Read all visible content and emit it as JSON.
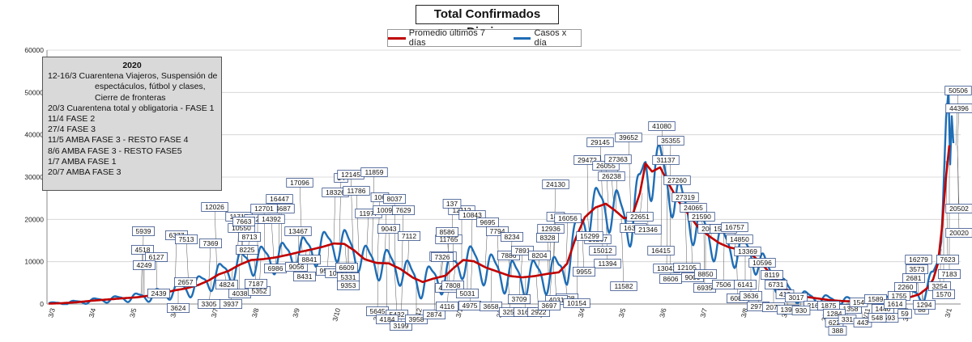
{
  "title": "Total  Confirmados  Diarios",
  "legend": {
    "avg_label": "Promedio últimos 7 días",
    "cases_label": "Casos x día",
    "avg_color": "#c00000",
    "cases_color": "#1f6db5"
  },
  "notes": {
    "title": "2020",
    "lines": [
      "12-16/3  Cuarentena Viajeros, Suspensión de",
      "espectáculos, fútbol y clases,",
      "Cierre de fronteras",
      "20/3  Cuarentena total y obligatoria - FASE 1",
      "11/4  FASE 2",
      "27/4  FASE 3",
      "11/5  AMBA FASE 3 - RESTO FASE 4",
      "8/6  AMBA FASE 3 - RESTO FASE5",
      "1/7  AMBA FASE 1",
      "20/7  AMBA FASE 3"
    ]
  },
  "chart_data": {
    "type": "line",
    "title": "Total  Confirmados  Diarios",
    "xlabel": "",
    "ylabel": "",
    "ylim": [
      0,
      60000
    ],
    "yticks": [
      "0",
      "10000",
      "20000",
      "30000",
      "40000",
      "50000",
      "60000"
    ],
    "xticks": [
      "3/3",
      "3/4",
      "3/5",
      "3/6",
      "3/7",
      "3/8",
      "3/9",
      "3/10",
      "3/11",
      "3/12",
      "3/1",
      "3/2",
      "3/3",
      "3/4",
      "3/5",
      "3/6",
      "3/7",
      "3/8",
      "3/9",
      "3/10",
      "3/11",
      "3/12",
      "3/1"
    ],
    "grid": true,
    "anchors": [
      [
        0,
        0
      ],
      [
        35,
        5
      ],
      [
        55,
        60
      ],
      [
        75,
        180
      ],
      [
        95,
        420
      ],
      [
        115,
        800
      ],
      [
        135,
        1100
      ],
      [
        155,
        1400
      ],
      [
        170,
        1600
      ],
      [
        185,
        2000
      ],
      [
        200,
        2500
      ],
      [
        215,
        3200
      ],
      [
        230,
        3700
      ],
      [
        245,
        4500
      ],
      [
        258,
        5600
      ],
      [
        270,
        7000
      ],
      [
        282,
        7800
      ],
      [
        295,
        9200
      ],
      [
        310,
        10400
      ],
      [
        325,
        10600
      ],
      [
        340,
        11000
      ],
      [
        355,
        11600
      ],
      [
        370,
        12300
      ],
      [
        385,
        12900
      ],
      [
        400,
        13600
      ],
      [
        412,
        14300
      ],
      [
        425,
        14200
      ],
      [
        437,
        12700
      ],
      [
        450,
        10600
      ],
      [
        465,
        9700
      ],
      [
        480,
        9600
      ],
      [
        495,
        8200
      ],
      [
        510,
        6200
      ],
      [
        522,
        5200
      ],
      [
        535,
        6000
      ],
      [
        550,
        6700
      ],
      [
        560,
        8500
      ],
      [
        572,
        10400
      ],
      [
        585,
        10100
      ],
      [
        600,
        8600
      ],
      [
        615,
        7600
      ],
      [
        630,
        6600
      ],
      [
        645,
        6300
      ],
      [
        660,
        6600
      ],
      [
        675,
        7100
      ],
      [
        690,
        7500
      ],
      [
        700,
        9500
      ],
      [
        710,
        15200
      ],
      [
        722,
        20500
      ],
      [
        735,
        22800
      ],
      [
        748,
        23700
      ],
      [
        760,
        22000
      ],
      [
        770,
        20300
      ],
      [
        780,
        20500
      ],
      [
        790,
        26200
      ],
      [
        797,
        33200
      ],
      [
        805,
        31300
      ],
      [
        815,
        32300
      ],
      [
        825,
        28600
      ],
      [
        838,
        24200
      ],
      [
        850,
        21200
      ],
      [
        862,
        18100
      ],
      [
        875,
        16100
      ],
      [
        888,
        14400
      ],
      [
        900,
        13400
      ],
      [
        912,
        12900
      ],
      [
        925,
        12200
      ],
      [
        940,
        9600
      ],
      [
        955,
        6300
      ],
      [
        968,
        3900
      ],
      [
        980,
        2300
      ],
      [
        995,
        1700
      ],
      [
        1010,
        1300
      ],
      [
        1025,
        900
      ],
      [
        1040,
        700
      ],
      [
        1055,
        600
      ],
      [
        1070,
        700
      ],
      [
        1085,
        850
      ],
      [
        1100,
        1000
      ],
      [
        1115,
        1300
      ],
      [
        1125,
        1700
      ],
      [
        1135,
        2300
      ],
      [
        1145,
        3800
      ],
      [
        1152,
        5800
      ],
      [
        1158,
        9600
      ],
      [
        1163,
        18200
      ],
      [
        1168,
        30200
      ],
      [
        1172,
        37500
      ]
    ],
    "weekly_amplitude": [
      [
        0,
        0
      ],
      [
        150,
        800
      ],
      [
        230,
        2200
      ],
      [
        300,
        3500
      ],
      [
        400,
        4200
      ],
      [
        500,
        3800
      ],
      [
        600,
        4300
      ],
      [
        700,
        4700
      ],
      [
        760,
        6200
      ],
      [
        800,
        7000
      ],
      [
        860,
        5500
      ],
      [
        930,
        3800
      ],
      [
        1000,
        1300
      ],
      [
        1100,
        1100
      ],
      [
        1150,
        3000
      ]
    ],
    "final_cases": [
      [
        1164,
        23000
      ],
      [
        1168,
        44000
      ],
      [
        1171,
        50506
      ],
      [
        1173,
        33000
      ],
      [
        1175,
        44396
      ],
      [
        1177,
        38000
      ]
    ],
    "labels": [
      [
        "5939",
        177,
        286
      ],
      [
        "6377",
        218,
        291
      ],
      [
        "7513",
        230,
        296
      ],
      [
        "4518",
        176,
        309
      ],
      [
        "6127",
        193,
        318
      ],
      [
        "4249",
        178,
        328
      ],
      [
        "2439",
        196,
        363
      ],
      [
        "2657",
        229,
        349
      ],
      [
        "3624",
        220,
        381
      ],
      [
        "3305",
        258,
        376
      ],
      [
        "3937",
        285,
        376
      ],
      [
        "4824",
        280,
        352
      ],
      [
        "4038",
        296,
        363
      ],
      [
        "5352",
        320,
        360
      ],
      [
        "7187",
        316,
        351
      ],
      [
        "6986",
        340,
        332
      ],
      [
        "7369",
        260,
        301
      ],
      [
        "8225",
        305,
        309
      ],
      [
        "8713",
        308,
        293
      ],
      [
        "10550",
        298,
        282
      ],
      [
        "11717",
        295,
        268
      ],
      [
        "12259",
        318,
        271
      ],
      [
        "14392",
        335,
        271
      ],
      [
        "14687",
        347,
        258
      ],
      [
        "12701",
        326,
        258
      ],
      [
        "7663",
        301,
        274
      ],
      [
        "12026",
        265,
        256
      ],
      [
        "16447",
        345,
        246
      ],
      [
        "17096",
        370,
        226
      ],
      [
        "13467",
        368,
        286
      ],
      [
        "9056",
        366,
        330
      ],
      [
        "8431",
        376,
        342
      ],
      [
        "8841",
        382,
        321
      ],
      [
        "9524",
        404,
        335
      ],
      [
        "10561",
        418,
        338
      ],
      [
        "5331",
        430,
        343
      ],
      [
        "6609",
        428,
        331
      ],
      [
        "9353",
        430,
        353
      ],
      [
        "18326",
        414,
        238
      ],
      [
        "14",
        421,
        220
      ],
      [
        "12145",
        433,
        216
      ],
      [
        "11859",
        462,
        213
      ],
      [
        "11786",
        440,
        236
      ],
      [
        "11977",
        455,
        264
      ],
      [
        "106",
        469,
        244
      ],
      [
        "10097",
        477,
        260
      ],
      [
        "8037",
        487,
        246
      ],
      [
        "9043",
        480,
        283
      ],
      [
        "7629",
        498,
        260
      ],
      [
        "7112",
        505,
        292
      ],
      [
        "5645",
        466,
        385
      ],
      [
        "5432",
        490,
        389
      ],
      [
        "4184",
        478,
        395
      ],
      [
        "3199",
        495,
        403
      ],
      [
        "3958",
        514,
        395
      ],
      [
        "2874",
        536,
        389
      ],
      [
        "11765",
        554,
        296
      ],
      [
        "8586",
        552,
        287
      ],
      [
        "13835",
        547,
        317
      ],
      [
        "7326",
        546,
        318
      ],
      [
        "4116",
        552,
        379
      ],
      [
        "4079",
        551,
        356
      ],
      [
        "7808",
        559,
        353
      ],
      [
        "12112",
        570,
        260
      ],
      [
        "137",
        558,
        252
      ],
      [
        "10843",
        583,
        266
      ],
      [
        "5031",
        577,
        363
      ],
      [
        "4975",
        580,
        378
      ],
      [
        "9695",
        602,
        275
      ],
      [
        "7794",
        614,
        286
      ],
      [
        "8234",
        632,
        293
      ],
      [
        "7886",
        628,
        316
      ],
      [
        "7891",
        645,
        310
      ],
      [
        "3709",
        641,
        370
      ],
      [
        "3658",
        606,
        379
      ],
      [
        "3254",
        630,
        386
      ],
      [
        "3168",
        648,
        386
      ],
      [
        "2922",
        665,
        386
      ],
      [
        "8204",
        666,
        316
      ],
      [
        "8328",
        676,
        294
      ],
      [
        "12936",
        680,
        283
      ],
      [
        "140",
        686,
        268
      ],
      [
        "16056",
        701,
        270
      ],
      [
        "24130",
        686,
        228
      ],
      [
        "29472",
        725,
        198
      ],
      [
        "29145",
        741,
        176
      ],
      [
        "26055",
        748,
        205
      ],
      [
        "26238",
        755,
        218
      ],
      [
        "27363",
        763,
        197
      ],
      [
        "39652",
        776,
        170
      ],
      [
        "41080",
        817,
        156
      ],
      [
        "35355",
        828,
        174
      ],
      [
        "31137",
        822,
        198
      ],
      [
        "27260",
        836,
        223
      ],
      [
        "27319",
        846,
        244
      ],
      [
        "24065",
        856,
        257
      ],
      [
        "21590",
        866,
        268
      ],
      [
        "20023",
        878,
        283
      ],
      [
        "15621",
        893,
        283
      ],
      [
        "16757",
        907,
        281
      ],
      [
        "14850",
        913,
        296
      ],
      [
        "13369",
        923,
        311
      ],
      [
        "10596",
        941,
        325
      ],
      [
        "8119",
        953,
        340
      ],
      [
        "6731",
        958,
        352
      ],
      [
        "410",
        969,
        364
      ],
      [
        "3017",
        983,
        368
      ],
      [
        "2162",
        1006,
        378
      ],
      [
        "1875",
        1023,
        378
      ],
      [
        "1358",
        1050,
        382
      ],
      [
        "154",
        1060,
        374
      ],
      [
        "1589",
        1081,
        370
      ],
      [
        "1440",
        1090,
        382
      ],
      [
        "1755",
        1110,
        366
      ],
      [
        "1614",
        1105,
        376
      ],
      [
        "2260",
        1118,
        355
      ],
      [
        "3573",
        1132,
        333
      ],
      [
        "16279",
        1134,
        321
      ],
      [
        "2681",
        1128,
        344
      ],
      [
        "593",
        1098,
        393
      ],
      [
        "59",
        1117,
        388
      ],
      [
        "1284",
        1030,
        388
      ],
      [
        "622",
        1030,
        399
      ],
      [
        "388",
        1034,
        409
      ],
      [
        "331",
        1046,
        395
      ],
      [
        "443",
        1065,
        399
      ],
      [
        "548",
        1083,
        393
      ],
      [
        "88",
        1138,
        383
      ],
      [
        "1294",
        1141,
        377
      ],
      [
        "3254",
        1160,
        354
      ],
      [
        "1570",
        1165,
        364
      ],
      [
        "7183",
        1172,
        339
      ],
      [
        "7623",
        1170,
        321
      ],
      [
        "15012",
        744,
        310
      ],
      [
        "11394",
        750,
        326
      ],
      [
        "16267",
        738,
        296
      ],
      [
        "15299",
        728,
        292
      ],
      [
        "9955",
        721,
        336
      ],
      [
        "7208",
        700,
        369
      ],
      [
        "4031",
        687,
        371
      ],
      [
        "3697",
        678,
        378
      ],
      [
        "10154",
        712,
        375
      ],
      [
        "16350",
        782,
        282
      ],
      [
        "11582",
        770,
        354
      ],
      [
        "22651",
        790,
        268
      ],
      [
        "21346",
        800,
        284
      ],
      [
        "16415",
        816,
        310
      ],
      [
        "13043",
        823,
        332
      ],
      [
        "8606",
        828,
        345
      ],
      [
        "12105",
        848,
        331
      ],
      [
        "9000",
        855,
        343
      ],
      [
        "8850",
        871,
        339
      ],
      [
        "6935",
        870,
        356
      ],
      [
        "7506",
        893,
        352
      ],
      [
        "6083",
        911,
        369
      ],
      [
        "6141",
        920,
        352
      ],
      [
        "3636",
        927,
        366
      ],
      [
        "2979",
        936,
        379
      ],
      [
        "2073",
        955,
        380
      ],
      [
        "1397",
        973,
        383
      ],
      [
        "930",
        989,
        384
      ],
      [
        "20502",
        1184,
        258
      ],
      [
        "20020",
        1184,
        288
      ],
      [
        "50506",
        1183,
        112
      ],
      [
        "44396",
        1184,
        134
      ]
    ]
  }
}
